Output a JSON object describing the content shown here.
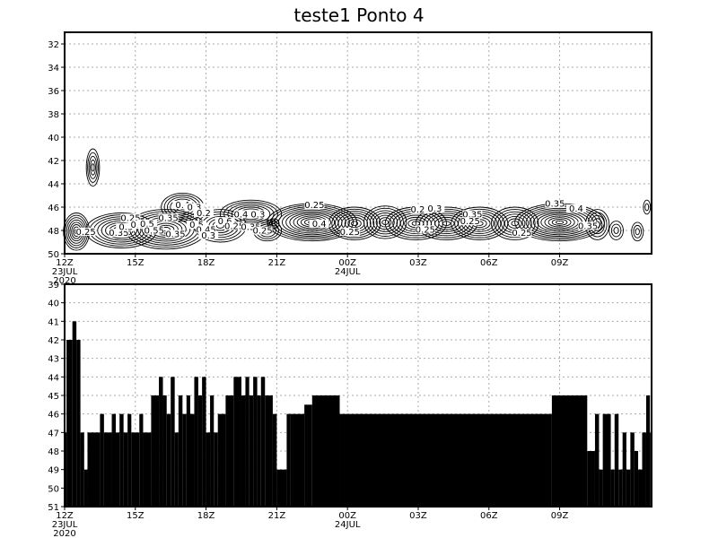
{
  "title": "teste1  Ponto  4",
  "chart_data": [
    {
      "type": "contour",
      "x_ticks": [
        "12Z",
        "15Z",
        "18Z",
        "21Z",
        "00Z",
        "03Z",
        "06Z",
        "09Z"
      ],
      "x_date_labels": [
        "23JUL",
        "24JUL"
      ],
      "x_year_label": "2020",
      "x_range_hours": [
        0,
        24.9
      ],
      "y_ticks": [
        32,
        34,
        36,
        38,
        40,
        42,
        44,
        46,
        48,
        50
      ],
      "y_range": [
        50,
        31
      ],
      "grid": true,
      "contour_levels": [
        0.25,
        0.3,
        0.35,
        0.4,
        0.45,
        0.5,
        0.55
      ],
      "contour_labels": [
        {
          "t": 0.9,
          "y": 48.3,
          "text": "0.25"
        },
        {
          "t": 2.3,
          "y": 48.4,
          "text": "0.35"
        },
        {
          "t": 2.6,
          "y": 47.9,
          "text": "0.3"
        },
        {
          "t": 2.8,
          "y": 47.1,
          "text": "0.25"
        },
        {
          "t": 3.1,
          "y": 47.7,
          "text": "0.3"
        },
        {
          "t": 3.5,
          "y": 47.6,
          "text": "0.5"
        },
        {
          "t": 3.8,
          "y": 48.2,
          "text": "0.55"
        },
        {
          "t": 4.4,
          "y": 47.1,
          "text": "0.35"
        },
        {
          "t": 4.7,
          "y": 48.5,
          "text": "0.35"
        },
        {
          "t": 5.0,
          "y": 46.0,
          "text": "0.4"
        },
        {
          "t": 5.5,
          "y": 46.2,
          "text": "0.3"
        },
        {
          "t": 5.6,
          "y": 47.7,
          "text": "0.5"
        },
        {
          "t": 5.9,
          "y": 46.7,
          "text": "0.2"
        },
        {
          "t": 6.0,
          "y": 48.1,
          "text": "0.45"
        },
        {
          "t": 6.1,
          "y": 48.6,
          "text": "0.3"
        },
        {
          "t": 6.8,
          "y": 47.4,
          "text": "0.6"
        },
        {
          "t": 7.2,
          "y": 47.8,
          "text": "0.25"
        },
        {
          "t": 7.6,
          "y": 46.8,
          "text": "0.45"
        },
        {
          "t": 7.9,
          "y": 47.9,
          "text": "0.35"
        },
        {
          "t": 8.2,
          "y": 46.8,
          "text": "0.3"
        },
        {
          "t": 8.4,
          "y": 48.2,
          "text": "0.25"
        },
        {
          "t": 10.6,
          "y": 46.0,
          "text": "0.25"
        },
        {
          "t": 10.8,
          "y": 47.6,
          "text": "0.4"
        },
        {
          "t": 12.1,
          "y": 48.3,
          "text": "0.25"
        },
        {
          "t": 15.1,
          "y": 46.4,
          "text": "0.25"
        },
        {
          "t": 15.7,
          "y": 46.3,
          "text": "0.3"
        },
        {
          "t": 15.3,
          "y": 48.1,
          "text": "0.25"
        },
        {
          "t": 17.3,
          "y": 46.8,
          "text": "0.35"
        },
        {
          "t": 17.2,
          "y": 47.4,
          "text": "0.25"
        },
        {
          "t": 19.4,
          "y": 48.4,
          "text": "0.25"
        },
        {
          "t": 20.8,
          "y": 45.9,
          "text": "0.35"
        },
        {
          "t": 21.7,
          "y": 46.3,
          "text": "0.4"
        },
        {
          "t": 22.2,
          "y": 47.8,
          "text": "0.35"
        }
      ]
    },
    {
      "type": "bar",
      "x_ticks": [
        "12Z",
        "15Z",
        "18Z",
        "21Z",
        "00Z",
        "03Z",
        "06Z",
        "09Z"
      ],
      "x_date_labels": [
        "23JUL",
        "24JUL"
      ],
      "x_year_label": "2020",
      "x_range_hours": [
        0,
        24.9
      ],
      "y_ticks": [
        39,
        40,
        41,
        42,
        43,
        44,
        45,
        46,
        47,
        48,
        49,
        50,
        51
      ],
      "y_range": [
        51,
        39
      ],
      "grid": true,
      "baseline": 51,
      "segments": [
        {
          "t0": 0.0,
          "t1": 0.08,
          "y": 47
        },
        {
          "t0": 0.08,
          "t1": 0.33,
          "y": 42
        },
        {
          "t0": 0.33,
          "t1": 0.5,
          "y": 41
        },
        {
          "t0": 0.5,
          "t1": 0.67,
          "y": 42
        },
        {
          "t0": 0.67,
          "t1": 0.83,
          "y": 47
        },
        {
          "t0": 0.83,
          "t1": 0.97,
          "y": 49
        },
        {
          "t0": 0.97,
          "t1": 1.5,
          "y": 47
        },
        {
          "t0": 1.5,
          "t1": 1.67,
          "y": 46
        },
        {
          "t0": 1.67,
          "t1": 2.0,
          "y": 47
        },
        {
          "t0": 2.0,
          "t1": 2.17,
          "y": 46
        },
        {
          "t0": 2.17,
          "t1": 2.33,
          "y": 47
        },
        {
          "t0": 2.33,
          "t1": 2.5,
          "y": 46
        },
        {
          "t0": 2.5,
          "t1": 2.67,
          "y": 47
        },
        {
          "t0": 2.67,
          "t1": 2.83,
          "y": 46
        },
        {
          "t0": 2.83,
          "t1": 3.17,
          "y": 47
        },
        {
          "t0": 3.17,
          "t1": 3.33,
          "y": 46
        },
        {
          "t0": 3.33,
          "t1": 3.67,
          "y": 47
        },
        {
          "t0": 3.67,
          "t1": 4.0,
          "y": 45
        },
        {
          "t0": 4.0,
          "t1": 4.17,
          "y": 44
        },
        {
          "t0": 4.17,
          "t1": 4.33,
          "y": 45
        },
        {
          "t0": 4.33,
          "t1": 4.5,
          "y": 46
        },
        {
          "t0": 4.5,
          "t1": 4.67,
          "y": 44
        },
        {
          "t0": 4.67,
          "t1": 4.83,
          "y": 47
        },
        {
          "t0": 4.83,
          "t1": 5.0,
          "y": 45
        },
        {
          "t0": 5.0,
          "t1": 5.17,
          "y": 46
        },
        {
          "t0": 5.17,
          "t1": 5.33,
          "y": 45
        },
        {
          "t0": 5.33,
          "t1": 5.5,
          "y": 46
        },
        {
          "t0": 5.5,
          "t1": 5.67,
          "y": 44
        },
        {
          "t0": 5.67,
          "t1": 5.83,
          "y": 45
        },
        {
          "t0": 5.83,
          "t1": 6.0,
          "y": 44
        },
        {
          "t0": 6.0,
          "t1": 6.17,
          "y": 47
        },
        {
          "t0": 6.17,
          "t1": 6.33,
          "y": 45
        },
        {
          "t0": 6.33,
          "t1": 6.5,
          "y": 47
        },
        {
          "t0": 6.5,
          "t1": 6.83,
          "y": 46
        },
        {
          "t0": 6.83,
          "t1": 7.17,
          "y": 45
        },
        {
          "t0": 7.17,
          "t1": 7.5,
          "y": 44
        },
        {
          "t0": 7.5,
          "t1": 7.67,
          "y": 45
        },
        {
          "t0": 7.67,
          "t1": 7.83,
          "y": 44
        },
        {
          "t0": 7.83,
          "t1": 8.0,
          "y": 45
        },
        {
          "t0": 8.0,
          "t1": 8.17,
          "y": 44
        },
        {
          "t0": 8.17,
          "t1": 8.33,
          "y": 45
        },
        {
          "t0": 8.33,
          "t1": 8.5,
          "y": 44
        },
        {
          "t0": 8.5,
          "t1": 8.83,
          "y": 45
        },
        {
          "t0": 8.83,
          "t1": 9.0,
          "y": 46
        },
        {
          "t0": 9.0,
          "t1": 9.42,
          "y": 49
        },
        {
          "t0": 9.42,
          "t1": 9.58,
          "y": 46
        },
        {
          "t0": 9.58,
          "t1": 10.17,
          "y": 46
        },
        {
          "t0": 10.17,
          "t1": 10.5,
          "y": 45.5
        },
        {
          "t0": 10.5,
          "t1": 11.67,
          "y": 45
        },
        {
          "t0": 11.67,
          "t1": 20.67,
          "y": 46
        },
        {
          "t0": 20.67,
          "t1": 22.17,
          "y": 45
        },
        {
          "t0": 22.17,
          "t1": 22.5,
          "y": 48
        },
        {
          "t0": 22.5,
          "t1": 22.67,
          "y": 46
        },
        {
          "t0": 22.67,
          "t1": 22.83,
          "y": 49
        },
        {
          "t0": 22.83,
          "t1": 23.17,
          "y": 46
        },
        {
          "t0": 23.17,
          "t1": 23.33,
          "y": 49
        },
        {
          "t0": 23.33,
          "t1": 23.5,
          "y": 46
        },
        {
          "t0": 23.5,
          "t1": 23.67,
          "y": 49
        },
        {
          "t0": 23.67,
          "t1": 23.83,
          "y": 47
        },
        {
          "t0": 23.83,
          "t1": 24.0,
          "y": 49
        },
        {
          "t0": 24.0,
          "t1": 24.17,
          "y": 47
        },
        {
          "t0": 24.17,
          "t1": 24.33,
          "y": 48
        },
        {
          "t0": 24.33,
          "t1": 24.5,
          "y": 49
        },
        {
          "t0": 24.5,
          "t1": 24.67,
          "y": 47
        },
        {
          "t0": 24.67,
          "t1": 24.83,
          "y": 45
        },
        {
          "t0": 24.83,
          "t1": 24.9,
          "y": 47
        }
      ]
    }
  ]
}
